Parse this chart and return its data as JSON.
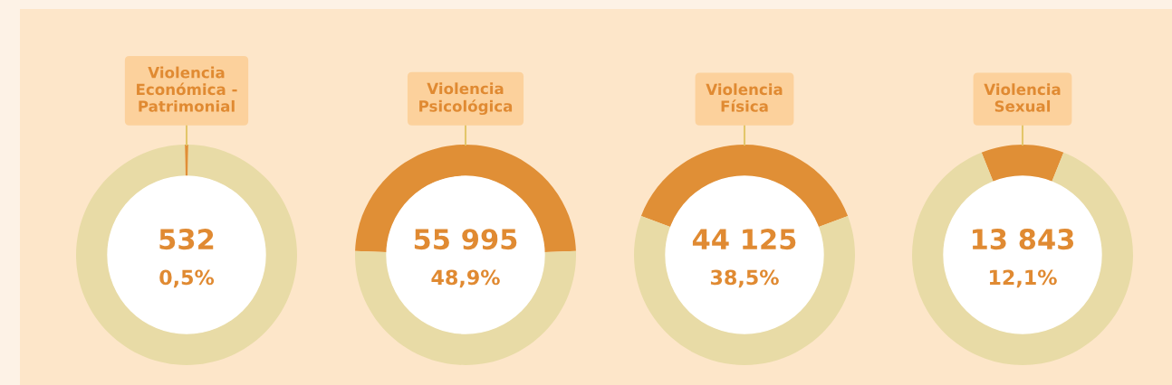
{
  "chart_data": [
    {
      "type": "donut",
      "title": "Violencia\nEconómica -\nPatrimonial",
      "categories": [
        null,
        null
      ],
      "values": [
        0.5,
        99.5
      ],
      "colors": [
        "#e08f36",
        "#e8dba6"
      ],
      "annotations": [
        "532",
        "0,5%"
      ]
    },
    {
      "type": "donut",
      "title": "Violencia\nPsicológica",
      "categories": [
        null,
        null
      ],
      "values": [
        48.9,
        51.1
      ],
      "colors": [
        "#e08f36",
        "#e8dba6"
      ],
      "annotations": [
        "55 995",
        "48,9%"
      ]
    },
    {
      "type": "donut",
      "title": "Violencia\nFísica",
      "categories": [
        null,
        null
      ],
      "values": [
        38.5,
        61.5
      ],
      "colors": [
        "#e08f36",
        "#e8dba6"
      ],
      "annotations": [
        "44 125",
        "38,5%"
      ]
    },
    {
      "type": "donut",
      "title": "Violencia\nSexual",
      "categories": [
        null,
        null
      ],
      "values": [
        12.1,
        87.9
      ],
      "colors": [
        "#e08f36",
        "#e8dba6"
      ],
      "annotations": [
        "13 843",
        "12,1%"
      ]
    }
  ]
}
